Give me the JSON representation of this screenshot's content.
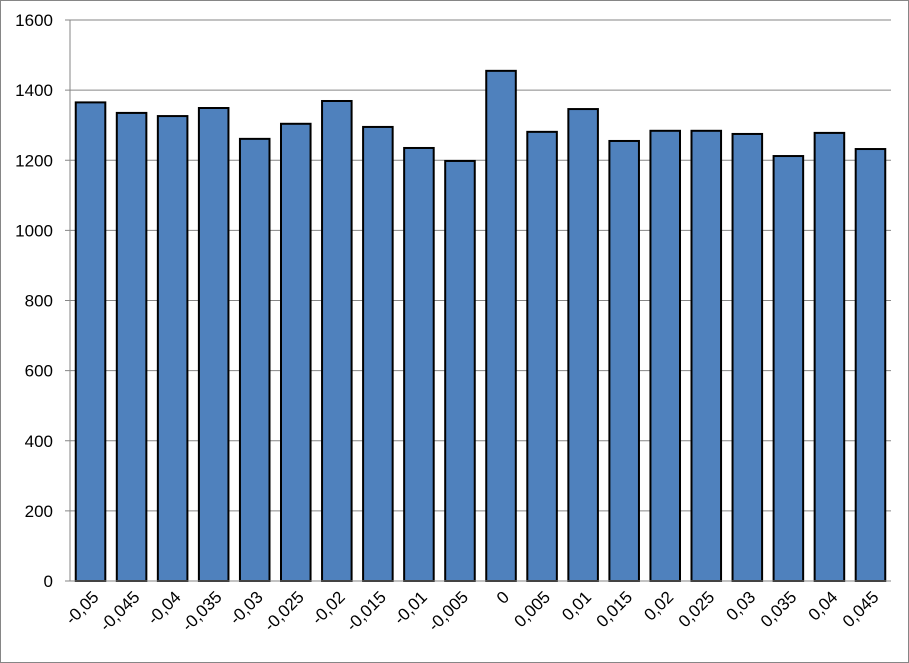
{
  "chart_data": {
    "type": "bar",
    "categories": [
      "-0,05",
      "-0,045",
      "-0,04",
      "-0,035",
      "-0,03",
      "-0,025",
      "-0,02",
      "-0,015",
      "-0,01",
      "-0,005",
      "0",
      "0,005",
      "0,01",
      "0,015",
      "0,02",
      "0,025",
      "0,03",
      "0,035",
      "0,04",
      "0,045"
    ],
    "values": [
      1365,
      1335,
      1326,
      1349,
      1261,
      1304,
      1369,
      1295,
      1235,
      1198,
      1455,
      1281,
      1346,
      1255,
      1284,
      1284,
      1275,
      1212,
      1278,
      1232
    ],
    "color": "#4f81bd",
    "ylim": [
      0,
      1600
    ],
    "yticks": [
      0,
      200,
      400,
      600,
      800,
      1000,
      1200,
      1400,
      1600
    ],
    "grid": true
  }
}
